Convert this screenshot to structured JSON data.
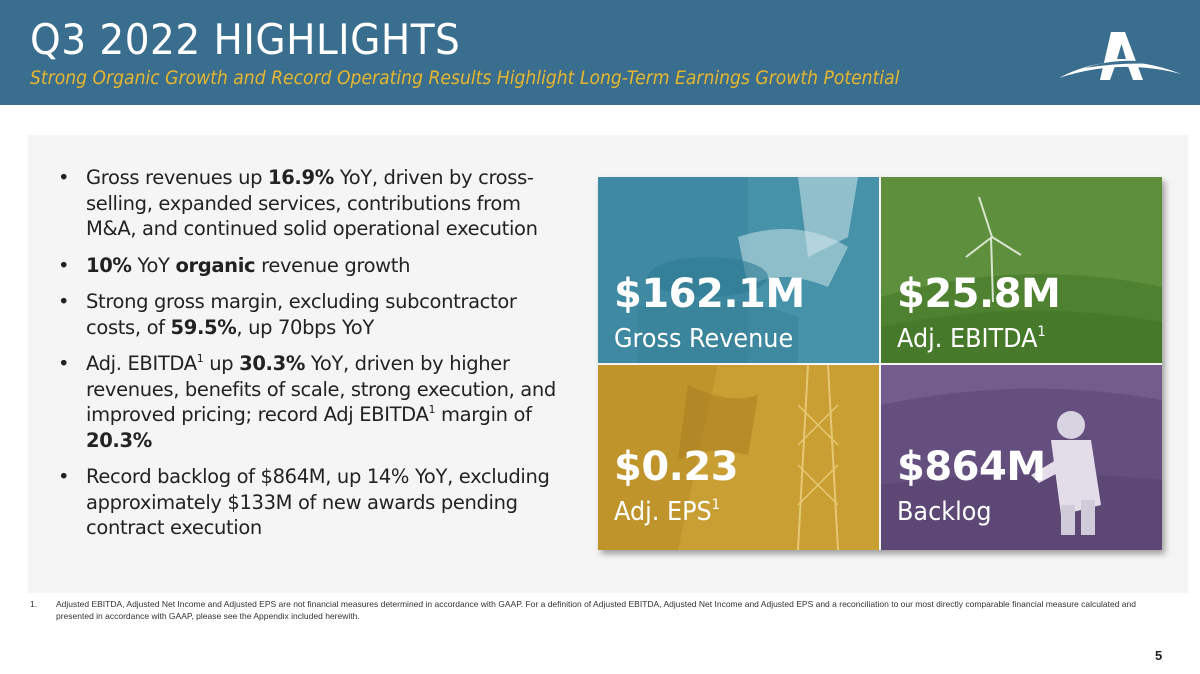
{
  "header": {
    "title": "Q3 2022 HIGHLIGHTS",
    "subtitle": "Strong Organic Growth and Record Operating Results Highlight Long-Term Earnings Growth Potential",
    "logo_icon": "atlas-a-logo-icon"
  },
  "bullets": [
    {
      "pre": "Gross revenues up ",
      "b1": "16.9%",
      "post": " YoY, driven by cross-selling, expanded services, contributions from M&A, and continued solid operational execution"
    },
    {
      "b1": "10%",
      "mid": " YoY ",
      "b2": "organic",
      "post": " revenue growth"
    },
    {
      "pre": "Strong gross margin, excluding subcontractor costs, of ",
      "b1": "59.5%",
      "post": ", up 70bps YoY"
    },
    {
      "pre": "Adj. EBITDA",
      "sup1": "1",
      "mid": " up ",
      "b1": "30.3%",
      "post": " YoY, driven by higher revenues, benefits of scale, strong execution, and improved pricing; record Adj EBITDA",
      "sup2": "1",
      "post2": " margin of ",
      "b2": "20.3%"
    },
    {
      "pre": "Record backlog of $864M, up 14% YoY, excluding approximately $133M of new awards pending contract execution"
    }
  ],
  "bullet_glyph": "•",
  "tiles": {
    "revenue": {
      "value": "$162.1M",
      "label": "Gross Revenue",
      "color": "#3d8ca0"
    },
    "ebitda": {
      "value": "$25.8M",
      "label": "Adj. EBITDA",
      "sup": "1",
      "color": "#5b8f3a"
    },
    "eps": {
      "value": "$0.23",
      "label": "Adj. EPS",
      "sup": "1",
      "color": "#c9a030"
    },
    "backlog": {
      "value": "$864M",
      "label": "Backlog",
      "color": "#6f5a8a"
    }
  },
  "footnote": {
    "number": "1.",
    "text": "Adjusted EBITDA, Adjusted Net Income and Adjusted EPS are not financial measures determined in accordance with GAAP. For a definition of Adjusted EBITDA, Adjusted Net Income and Adjusted EPS and a reconciliation to our most directly comparable financial measure calculated and presented in accordance with GAAP, please see the Appendix included herewith."
  },
  "page_number": "5",
  "colors": {
    "header_bg": "#3a6e8f",
    "subtitle": "#e8b62a",
    "panel_bg": "#f5f5f5"
  }
}
